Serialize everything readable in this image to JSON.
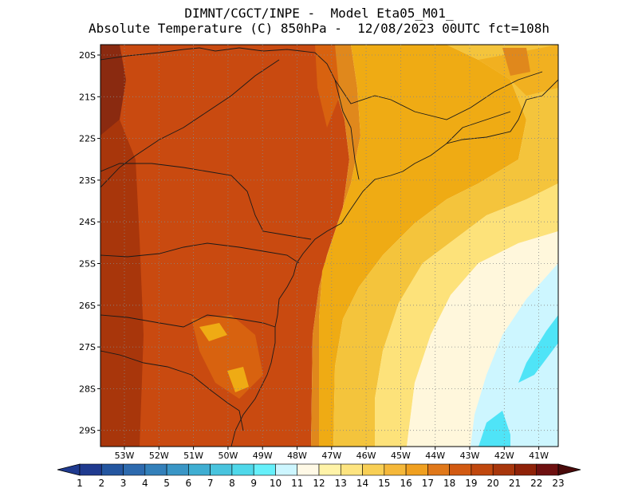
{
  "title": {
    "line1": "DIMNT/CGCT/INPE -  Model Eta05_M01_",
    "line2": "Absolute Temperature (C) 850hPa -  12/08/2023 00UTC fct=108h"
  },
  "map": {
    "lat_labels": [
      "20S",
      "21S",
      "22S",
      "23S",
      "24S",
      "25S",
      "26S",
      "27S",
      "28S",
      "29S"
    ],
    "lon_labels": [
      "53W",
      "52W",
      "51W",
      "50W",
      "49W",
      "48W",
      "47W",
      "46W",
      "45W",
      "44W",
      "43W",
      "42W",
      "41W"
    ],
    "grid": true,
    "region": "Southeast/South Brazil and adjacent Atlantic"
  },
  "colorbar": {
    "labels": [
      "1",
      "2",
      "3",
      "4",
      "5",
      "6",
      "7",
      "8",
      "9",
      "10",
      "11",
      "12",
      "13",
      "14",
      "15",
      "16",
      "17",
      "18",
      "19",
      "20",
      "21",
      "22",
      "23"
    ],
    "colors": [
      "#1f3a8f",
      "#2456a0",
      "#2d6aae",
      "#3380ba",
      "#3a96c6",
      "#3faed2",
      "#49c4de",
      "#4fd8ea",
      "#66f0fa",
      "#cdf6ff",
      "#fff9e6",
      "#fff3a8",
      "#fde480",
      "#f8cf55",
      "#f5b83a",
      "#f0a020",
      "#e0781a",
      "#d25a12",
      "#c0480e",
      "#a8360b",
      "#8f2208",
      "#6e1010",
      "#4a0a0a"
    ]
  },
  "colors": {
    "land_dark": "#8a2a10",
    "land": "#c94a10",
    "land_mid": "#d8620f",
    "coast": "#e0881c",
    "warm": "#efab14",
    "yellow": "#f4c43c",
    "pale": "#fde27a",
    "cream": "#fff7dc",
    "cyan_light": "#cdf6ff",
    "cyan": "#4fe4f7"
  }
}
